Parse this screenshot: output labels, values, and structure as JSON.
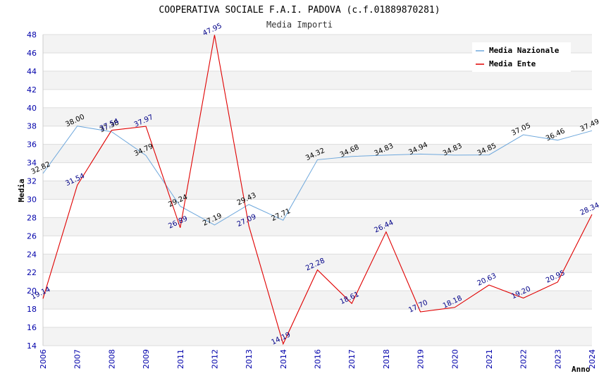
{
  "chart_data": {
    "type": "line",
    "title": "COOPERATIVA SOCIALE F.A.I. PADOVA (c.f.01889870281)",
    "subtitle": "Media Importi",
    "xlabel": "Anno",
    "ylabel": "Media",
    "ylim": [
      14,
      48
    ],
    "yticks": [
      "14",
      "16",
      "18",
      "20",
      "22",
      "24",
      "26",
      "28",
      "30",
      "32",
      "34",
      "36",
      "38",
      "40",
      "42",
      "44",
      "46",
      "48"
    ],
    "categories": [
      "2006",
      "2007",
      "2008",
      "2009",
      "2011",
      "2012",
      "2013",
      "2014",
      "2016",
      "2017",
      "2018",
      "2019",
      "2020",
      "2021",
      "2022",
      "2023",
      "2024"
    ],
    "grid": true,
    "legend_position": "top-right",
    "series": [
      {
        "name": "Media Nazionale",
        "color": "#6fa8dc",
        "values": [
          32.82,
          38.0,
          37.38,
          34.79,
          29.24,
          27.19,
          29.43,
          27.71,
          34.32,
          34.68,
          34.83,
          34.94,
          34.83,
          34.85,
          37.05,
          36.46,
          37.49
        ],
        "labels": [
          "32.82",
          "38.00",
          "37.38",
          "34.79",
          "29.24",
          "27.19",
          "29.43",
          "27.71",
          "34.32",
          "34.68",
          "34.83",
          "34.94",
          "34.83",
          "34.85",
          "37.05",
          "36.46",
          "37.49"
        ]
      },
      {
        "name": "Media Ente",
        "color": "#e00000",
        "values": [
          19.14,
          31.54,
          37.54,
          37.97,
          26.89,
          47.95,
          27.09,
          14.19,
          22.28,
          18.61,
          26.44,
          17.7,
          18.18,
          20.63,
          19.2,
          20.95,
          28.34
        ],
        "labels": [
          "19.14",
          "31.54",
          "37.54",
          "37.97",
          "26.89",
          "47.95",
          "27.09",
          "14.19",
          "22.28",
          "18.61",
          "26.44",
          "17.70",
          "18.18",
          "20.63",
          "19.20",
          "20.95",
          "28.34"
        ]
      }
    ]
  }
}
